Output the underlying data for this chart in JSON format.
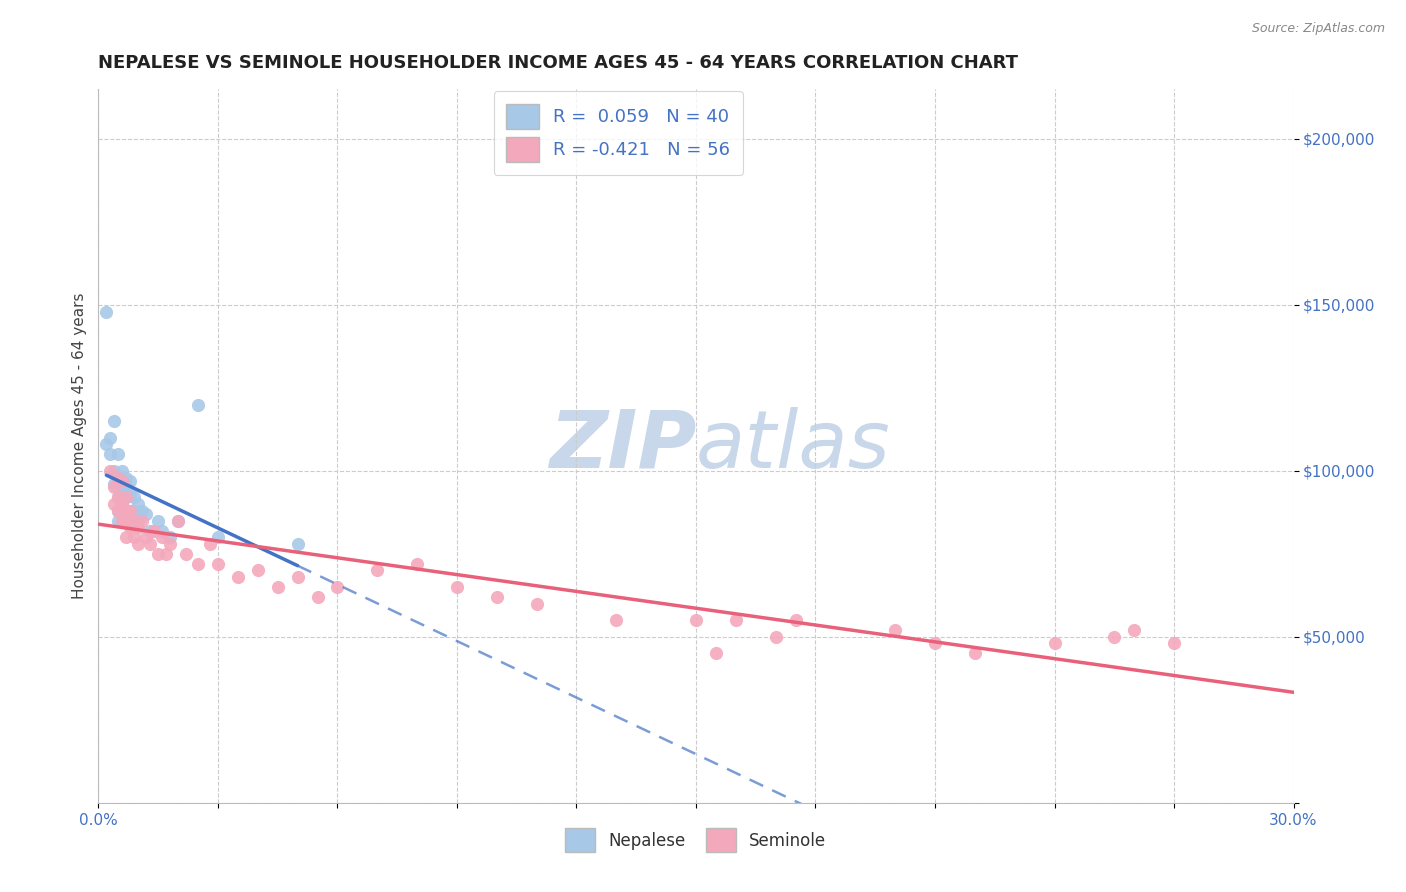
{
  "title": "NEPALESE VS SEMINOLE HOUSEHOLDER INCOME AGES 45 - 64 YEARS CORRELATION CHART",
  "source_text": "Source: ZipAtlas.com",
  "ylabel_label": "Householder Income Ages 45 - 64 years",
  "xlim": [
    0.0,
    0.3
  ],
  "ylim": [
    0,
    215000
  ],
  "xticks": [
    0.0,
    0.03,
    0.06,
    0.09,
    0.12,
    0.15,
    0.18,
    0.21,
    0.24,
    0.27,
    0.3
  ],
  "xticklabels_show": [
    "0.0%",
    "",
    "",
    "",
    "",
    "",
    "",
    "",
    "",
    "",
    "30.0%"
  ],
  "yticks": [
    0,
    50000,
    100000,
    150000,
    200000
  ],
  "yticklabels": [
    "",
    "$50,000",
    "$100,000",
    "$150,000",
    "$200,000"
  ],
  "nepalese_R": "0.059",
  "nepalese_N": "40",
  "seminole_R": "-0.421",
  "seminole_N": "56",
  "nepalese_color": "#a8c8e8",
  "seminole_color": "#f4a8bc",
  "nepalese_line_color": "#4472c4",
  "seminole_line_color": "#e8607a",
  "watermark_color": "#c8d8ea",
  "background_color": "#ffffff",
  "legend_R_color": "#4472c4",
  "legend_text_color": "#333333",
  "nepalese_x": [
    0.002,
    0.002,
    0.003,
    0.003,
    0.004,
    0.004,
    0.004,
    0.005,
    0.005,
    0.005,
    0.005,
    0.005,
    0.005,
    0.006,
    0.006,
    0.006,
    0.006,
    0.006,
    0.007,
    0.007,
    0.007,
    0.007,
    0.007,
    0.008,
    0.008,
    0.008,
    0.009,
    0.009,
    0.01,
    0.01,
    0.011,
    0.012,
    0.013,
    0.015,
    0.016,
    0.018,
    0.02,
    0.025,
    0.03,
    0.05
  ],
  "nepalese_y": [
    148000,
    108000,
    110000,
    105000,
    115000,
    100000,
    96000,
    105000,
    98000,
    95000,
    92000,
    88000,
    85000,
    100000,
    98000,
    95000,
    90000,
    87000,
    98000,
    95000,
    92000,
    88000,
    85000,
    97000,
    93000,
    88000,
    92000,
    88000,
    90000,
    85000,
    88000,
    87000,
    82000,
    85000,
    82000,
    80000,
    85000,
    120000,
    80000,
    78000
  ],
  "seminole_x": [
    0.003,
    0.004,
    0.004,
    0.005,
    0.005,
    0.005,
    0.006,
    0.006,
    0.006,
    0.007,
    0.007,
    0.007,
    0.007,
    0.008,
    0.008,
    0.009,
    0.009,
    0.01,
    0.01,
    0.011,
    0.012,
    0.013,
    0.014,
    0.015,
    0.016,
    0.017,
    0.018,
    0.02,
    0.022,
    0.025,
    0.028,
    0.03,
    0.035,
    0.04,
    0.045,
    0.05,
    0.055,
    0.06,
    0.07,
    0.08,
    0.09,
    0.1,
    0.11,
    0.13,
    0.15,
    0.155,
    0.16,
    0.17,
    0.175,
    0.2,
    0.21,
    0.22,
    0.24,
    0.255,
    0.26,
    0.27
  ],
  "seminole_y": [
    100000,
    95000,
    90000,
    98000,
    92000,
    88000,
    97000,
    90000,
    85000,
    92000,
    88000,
    85000,
    80000,
    88000,
    83000,
    85000,
    80000,
    83000,
    78000,
    85000,
    80000,
    78000,
    82000,
    75000,
    80000,
    75000,
    78000,
    85000,
    75000,
    72000,
    78000,
    72000,
    68000,
    70000,
    65000,
    68000,
    62000,
    65000,
    70000,
    72000,
    65000,
    62000,
    60000,
    55000,
    55000,
    45000,
    55000,
    50000,
    55000,
    52000,
    48000,
    45000,
    48000,
    50000,
    52000,
    48000
  ]
}
